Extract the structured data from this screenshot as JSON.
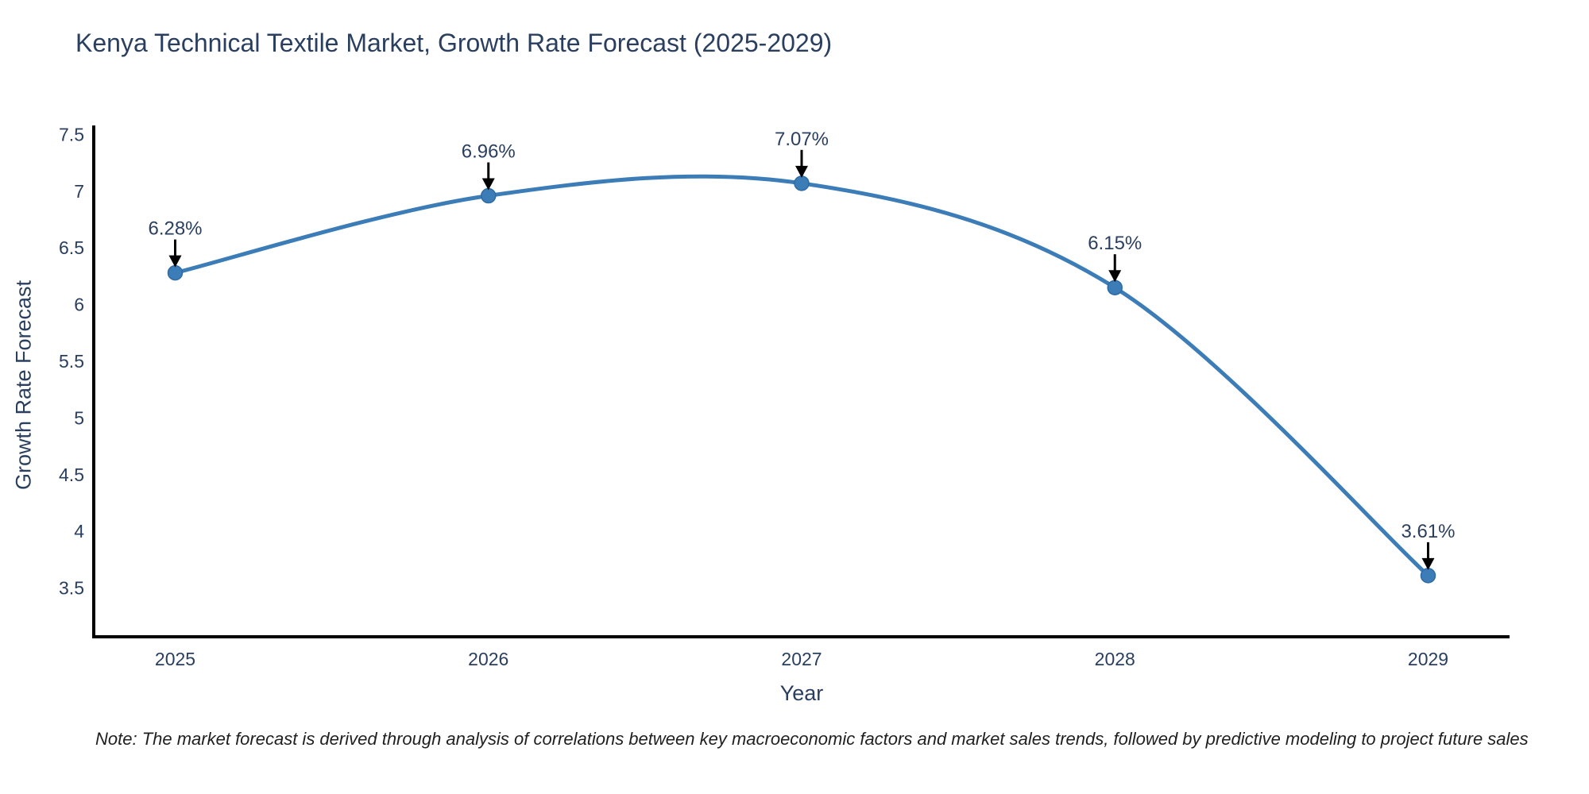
{
  "note": "Note: The market forecast is derived through analysis of correlations between key macroeconomic factors and market sales trends, followed by predictive modeling to project future sales",
  "colors": {
    "line": "#3c7db8",
    "marker_fill": "#3c7db8",
    "marker_edge": "#2e6ba6",
    "axis_line": "#000000",
    "arrow": "#000000",
    "text": "#2a3f5f",
    "note_text": "#1f1f1f",
    "background": "#ffffff"
  },
  "chart_data": {
    "type": "line",
    "title": "Kenya Technical Textile Market, Growth Rate Forecast (2025-2029)",
    "categories": [
      "2025",
      "2026",
      "2027",
      "2028",
      "2029"
    ],
    "x": [
      2025,
      2026,
      2027,
      2028,
      2029
    ],
    "values": [
      6.28,
      6.96,
      7.07,
      6.15,
      3.61
    ],
    "point_labels": [
      "6.28%",
      "6.96%",
      "7.07%",
      "6.15%",
      "3.61%"
    ],
    "xlabel": "Year",
    "ylabel": "Growth Rate Forecast",
    "xlim": [
      2024.74,
      2029.26
    ],
    "ylim": [
      3.07,
      7.58
    ],
    "yticks": [
      3.5,
      4,
      4.5,
      5,
      5.5,
      6,
      6.5,
      7,
      7.5
    ],
    "ytick_labels": [
      "3.5",
      "4",
      "4.5",
      "5",
      "5.5",
      "6",
      "6.5",
      "7",
      "7.5"
    ],
    "grid": false,
    "legend": "none",
    "line_shape": "spline",
    "marker_size": 9,
    "annotation_style": "value-above-with-down-arrow"
  }
}
